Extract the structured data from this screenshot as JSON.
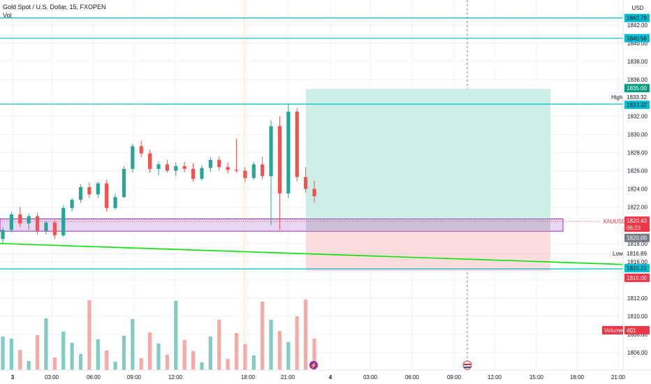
{
  "header": {
    "title": "Gold Spot / U.S. Dollar, 15, FXOPEN",
    "indicator": "Vol",
    "currency": "USD"
  },
  "colors": {
    "up": "#26a69a",
    "down": "#ef5350",
    "up_vol": "#80cbc4",
    "down_vol": "#f7a9a7",
    "hline": "#00bcd4",
    "trend": "#00e600",
    "target_zone": "#cdeee6",
    "stop_zone": "#fcdcdc",
    "rect_fill": "#e2c8ef",
    "rect_stroke": "#9c27b0",
    "price_tag": "#f23645"
  },
  "chart_data": {
    "type": "candlestick",
    "x_tick_labels": [
      "3",
      "03:00",
      "06:00",
      "09:00",
      "12:00",
      "18:00",
      "21:00",
      "4",
      "03:00",
      "06:00",
      "09:00",
      "12:00",
      "15:00",
      "18:00",
      "21:00"
    ],
    "y_tick_labels": [
      "1842.00",
      "1840.00",
      "1838.00",
      "1836.00",
      "1832.00",
      "1830.00",
      "1828.00",
      "1826.00",
      "1824.00",
      "1822.00",
      "1818.00",
      "1816.00",
      "1814.00",
      "1812.00",
      "1810.00",
      "1808.00",
      "1806.00"
    ],
    "ylim": [
      1805,
      1843.5
    ],
    "candles_approx": [
      [
        1818.5,
        1819.8,
        1818.0,
        1819.5
      ],
      [
        1819.5,
        1821.5,
        1819.2,
        1821.2
      ],
      [
        1821.2,
        1822.0,
        1819.8,
        1820.2
      ],
      [
        1820.2,
        1821.3,
        1819.5,
        1821.0
      ],
      [
        1821.0,
        1821.4,
        1819.0,
        1819.4
      ],
      [
        1819.4,
        1820.5,
        1819.0,
        1820.3
      ],
      [
        1820.3,
        1820.6,
        1818.5,
        1818.9
      ],
      [
        1818.9,
        1822.2,
        1818.7,
        1821.9
      ],
      [
        1821.9,
        1823.0,
        1821.5,
        1822.8
      ],
      [
        1822.8,
        1824.5,
        1822.5,
        1824.2
      ],
      [
        1824.2,
        1824.7,
        1823.0,
        1823.4
      ],
      [
        1823.4,
        1824.8,
        1823.0,
        1824.6
      ],
      [
        1824.6,
        1825.0,
        1821.5,
        1821.9
      ],
      [
        1821.9,
        1823.5,
        1821.7,
        1823.1
      ],
      [
        1823.1,
        1826.5,
        1823.0,
        1826.2
      ],
      [
        1826.2,
        1829.0,
        1825.8,
        1828.7
      ],
      [
        1828.7,
        1829.3,
        1827.5,
        1827.9
      ],
      [
        1827.9,
        1828.3,
        1825.8,
        1826.2
      ],
      [
        1826.2,
        1827.0,
        1825.5,
        1826.7
      ],
      [
        1826.7,
        1827.2,
        1825.8,
        1826.0
      ],
      [
        1826.0,
        1826.9,
        1825.4,
        1826.5
      ],
      [
        1826.5,
        1827.0,
        1825.8,
        1826.2
      ],
      [
        1826.2,
        1826.8,
        1824.8,
        1825.1
      ],
      [
        1825.1,
        1826.6,
        1824.9,
        1826.3
      ],
      [
        1826.3,
        1827.5,
        1825.9,
        1827.2
      ],
      [
        1827.2,
        1827.6,
        1826.0,
        1826.4
      ],
      [
        1826.4,
        1826.9,
        1825.7,
        1826.1
      ],
      [
        1826.1,
        1829.5,
        1825.8,
        1826.0
      ],
      [
        1826.0,
        1826.4,
        1824.8,
        1825.2
      ],
      [
        1825.2,
        1827.0,
        1825.0,
        1826.7
      ],
      [
        1826.7,
        1827.5,
        1825.0,
        1825.4
      ],
      [
        1825.4,
        1831.5,
        1820.0,
        1830.9
      ],
      [
        1830.9,
        1832.0,
        1819.5,
        1823.5
      ],
      [
        1823.5,
        1833.3,
        1823.0,
        1832.5
      ],
      [
        1832.5,
        1832.9,
        1824.8,
        1825.3
      ],
      [
        1825.3,
        1826.4,
        1823.6,
        1824.0
      ],
      [
        1824.0,
        1824.9,
        1822.5,
        1823.2
      ]
    ],
    "horizontal_lines": [
      1842.79,
      1840.56,
      1833.32,
      1815.21
    ],
    "position_tool": {
      "entry": 1820.0,
      "target": 1835.0,
      "stop": 1815.0
    },
    "zone": {
      "top": 1820.7,
      "bottom": 1819.35
    },
    "price_labels": [
      {
        "text": "1842.79",
        "kind": "hline"
      },
      {
        "text": "1840.56",
        "kind": "hline"
      },
      {
        "text": "1835.00",
        "kind": "target"
      },
      {
        "text": "1833.32",
        "kind": "plain"
      },
      {
        "text": "1833.32",
        "kind": "hline"
      },
      {
        "text": "1820.43",
        "kind": "last"
      },
      {
        "text": "06:23",
        "kind": "last-sub"
      },
      {
        "text": "1820.00",
        "kind": "entry"
      },
      {
        "text": "1816.89",
        "kind": "plain"
      },
      {
        "text": "1815.21",
        "kind": "hline"
      },
      {
        "text": "1815.00",
        "kind": "stop"
      }
    ],
    "high_label": "High",
    "low_label": "Low",
    "symbol_label": "XAUUSD",
    "volume_label": "Volume",
    "volume_value": "401"
  }
}
